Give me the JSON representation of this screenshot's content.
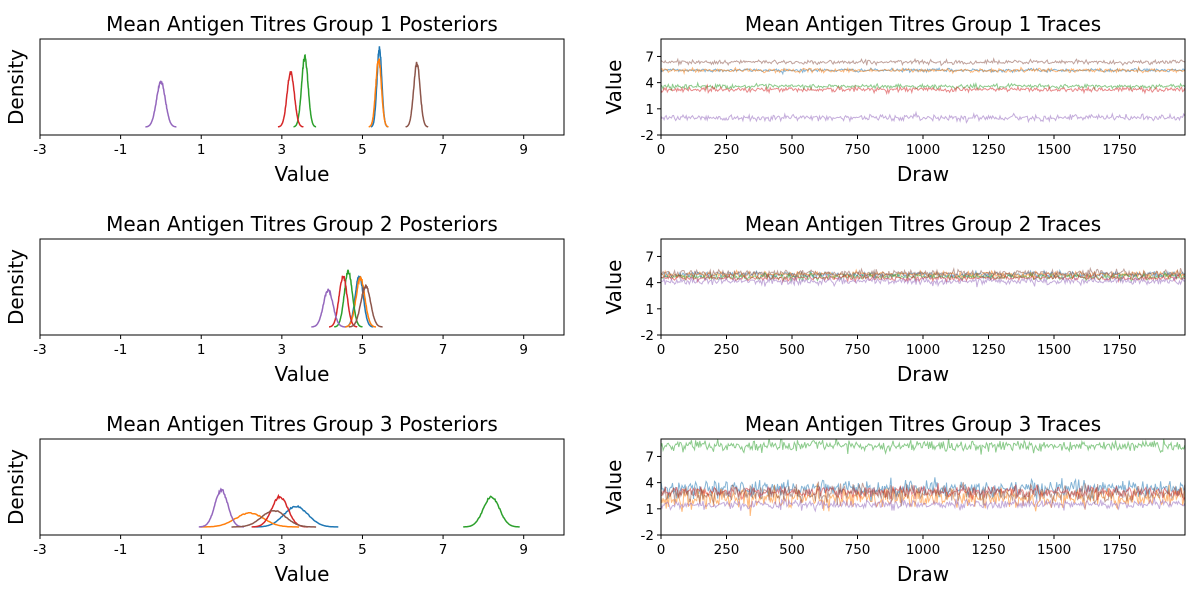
{
  "colors": {
    "blue": "#1f77b4",
    "orange": "#ff7f0e",
    "green": "#2ca02c",
    "red": "#d62728",
    "purple": "#9467bd",
    "brown": "#8c564b"
  },
  "chart_data": [
    {
      "type": "line",
      "title": "Mean Antigen Titres Group 1 Posteriors",
      "xlabel": "Value",
      "ylabel": "Density",
      "xlim": [
        -3,
        10
      ],
      "xticks": [
        -3,
        -1,
        1,
        3,
        5,
        7,
        9
      ],
      "yticks": [],
      "series": [
        {
          "color": "blue",
          "mean": 5.42,
          "sd": 0.06,
          "peak": 0.95
        },
        {
          "color": "orange",
          "mean": 5.4,
          "sd": 0.07,
          "peak": 0.82
        },
        {
          "color": "green",
          "mean": 3.57,
          "sd": 0.08,
          "peak": 0.85
        },
        {
          "color": "red",
          "mean": 3.22,
          "sd": 0.09,
          "peak": 0.67
        },
        {
          "color": "purple",
          "mean": 0.0,
          "sd": 0.11,
          "peak": 0.55
        },
        {
          "color": "brown",
          "mean": 6.35,
          "sd": 0.08,
          "peak": 0.77
        }
      ]
    },
    {
      "type": "line",
      "title": "Mean Antigen Titres Group 1 Traces",
      "xlabel": "Draw",
      "ylabel": "Value",
      "xlim": [
        0,
        2000
      ],
      "ylim": [
        -2,
        9
      ],
      "xticks": [
        0,
        250,
        500,
        750,
        1000,
        1250,
        1500,
        1750
      ],
      "yticks": [
        -2,
        1,
        4,
        7
      ],
      "series": [
        {
          "color": "blue",
          "mean": 5.42,
          "sd": 0.06
        },
        {
          "color": "orange",
          "mean": 5.4,
          "sd": 0.07
        },
        {
          "color": "green",
          "mean": 3.57,
          "sd": 0.08
        },
        {
          "color": "red",
          "mean": 3.22,
          "sd": 0.09
        },
        {
          "color": "purple",
          "mean": 0.0,
          "sd": 0.11
        },
        {
          "color": "brown",
          "mean": 6.35,
          "sd": 0.08
        }
      ]
    },
    {
      "type": "line",
      "title": "Mean Antigen Titres Group 2 Posteriors",
      "xlabel": "Value",
      "ylabel": "Density",
      "xlim": [
        -3,
        10
      ],
      "xticks": [
        -3,
        -1,
        1,
        3,
        5,
        7,
        9
      ],
      "yticks": [],
      "series": [
        {
          "color": "blue",
          "mean": 4.92,
          "sd": 0.1,
          "peak": 0.62
        },
        {
          "color": "orange",
          "mean": 4.95,
          "sd": 0.11,
          "peak": 0.6
        },
        {
          "color": "green",
          "mean": 4.65,
          "sd": 0.1,
          "peak": 0.68
        },
        {
          "color": "red",
          "mean": 4.52,
          "sd": 0.1,
          "peak": 0.62
        },
        {
          "color": "purple",
          "mean": 4.15,
          "sd": 0.12,
          "peak": 0.45
        },
        {
          "color": "brown",
          "mean": 5.08,
          "sd": 0.12,
          "peak": 0.5
        }
      ]
    },
    {
      "type": "line",
      "title": "Mean Antigen Titres Group 2 Traces",
      "xlabel": "Draw",
      "ylabel": "Value",
      "xlim": [
        0,
        2000
      ],
      "ylim": [
        -2,
        9
      ],
      "xticks": [
        0,
        250,
        500,
        750,
        1000,
        1250,
        1500,
        1750
      ],
      "yticks": [
        -2,
        1,
        4,
        7
      ],
      "series": [
        {
          "color": "blue",
          "mean": 4.92,
          "sd": 0.1
        },
        {
          "color": "orange",
          "mean": 4.95,
          "sd": 0.11
        },
        {
          "color": "green",
          "mean": 4.65,
          "sd": 0.1
        },
        {
          "color": "red",
          "mean": 4.52,
          "sd": 0.1
        },
        {
          "color": "purple",
          "mean": 4.15,
          "sd": 0.12
        },
        {
          "color": "brown",
          "mean": 5.08,
          "sd": 0.12
        }
      ]
    },
    {
      "type": "line",
      "title": "Mean Antigen Titres Group 3 Posteriors",
      "xlabel": "Value",
      "ylabel": "Density",
      "xlim": [
        -3,
        10
      ],
      "xticks": [
        -3,
        -1,
        1,
        3,
        5,
        7,
        9
      ],
      "yticks": [],
      "series": [
        {
          "color": "blue",
          "mean": 3.35,
          "sd": 0.3,
          "peak": 0.25
        },
        {
          "color": "orange",
          "mean": 2.2,
          "sd": 0.35,
          "peak": 0.17
        },
        {
          "color": "green",
          "mean": 8.2,
          "sd": 0.2,
          "peak": 0.37
        },
        {
          "color": "red",
          "mean": 2.95,
          "sd": 0.2,
          "peak": 0.37
        },
        {
          "color": "purple",
          "mean": 1.5,
          "sd": 0.16,
          "peak": 0.45
        },
        {
          "color": "brown",
          "mean": 2.8,
          "sd": 0.3,
          "peak": 0.2
        }
      ]
    },
    {
      "type": "line",
      "title": "Mean Antigen Titres Group 3 Traces",
      "xlabel": "Draw",
      "ylabel": "Value",
      "xlim": [
        0,
        2000
      ],
      "ylim": [
        -2,
        9
      ],
      "xticks": [
        0,
        250,
        500,
        750,
        1000,
        1250,
        1500,
        1750
      ],
      "yticks": [
        -2,
        1,
        4,
        7
      ],
      "series": [
        {
          "color": "blue",
          "mean": 3.35,
          "sd": 0.3
        },
        {
          "color": "orange",
          "mean": 2.2,
          "sd": 0.35
        },
        {
          "color": "green",
          "mean": 8.2,
          "sd": 0.2
        },
        {
          "color": "red",
          "mean": 2.95,
          "sd": 0.2
        },
        {
          "color": "purple",
          "mean": 1.5,
          "sd": 0.16
        },
        {
          "color": "brown",
          "mean": 2.8,
          "sd": 0.3
        }
      ]
    }
  ]
}
